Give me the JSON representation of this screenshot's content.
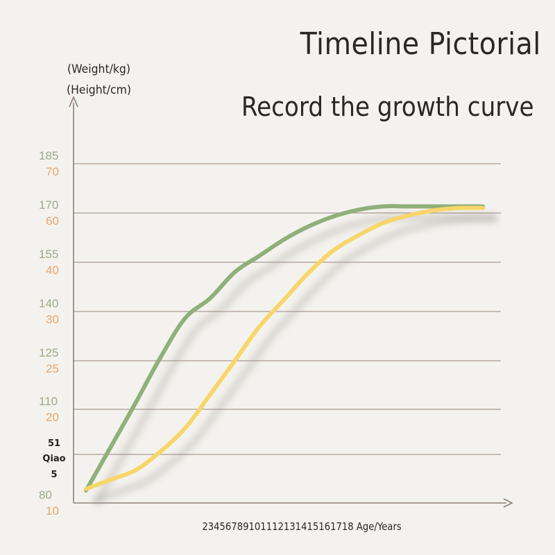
{
  "chart_data": {
    "type": "line",
    "title": "Timeline Pictorial",
    "subtitle": "Record the growth curve",
    "ylabel_weight": "(Weight/kg)",
    "ylabel_height": "(Height/cm)",
    "xlabel": "23456789101112131415161718 Age/Years",
    "height_ticks": [
      "185",
      "170",
      "155",
      "140",
      "125",
      "110",
      "80"
    ],
    "weight_ticks": [
      "70",
      "60",
      "40",
      "30",
      "25",
      "20",
      "10"
    ],
    "x": [
      2,
      3,
      4,
      5,
      6,
      7,
      8,
      9,
      10,
      11,
      12,
      13,
      14,
      15,
      16,
      17,
      18
    ],
    "series": [
      {
        "color": "#8fb07a",
        "values": [
          84,
          98,
          112,
          126,
          138,
          144,
          152,
          157,
          162,
          166,
          169,
          171,
          172,
          172,
          172,
          172,
          172
        ]
      },
      {
        "color": "#f7d66a",
        "values": [
          11.5,
          12.5,
          13.5,
          15.5,
          18,
          21.5,
          25,
          28.5,
          32.5,
          38,
          45,
          51,
          56,
          59,
          60.5,
          61,
          61
        ]
      }
    ],
    "watermark": [
      "51",
      "Qiao",
      "5"
    ],
    "grid": true
  }
}
